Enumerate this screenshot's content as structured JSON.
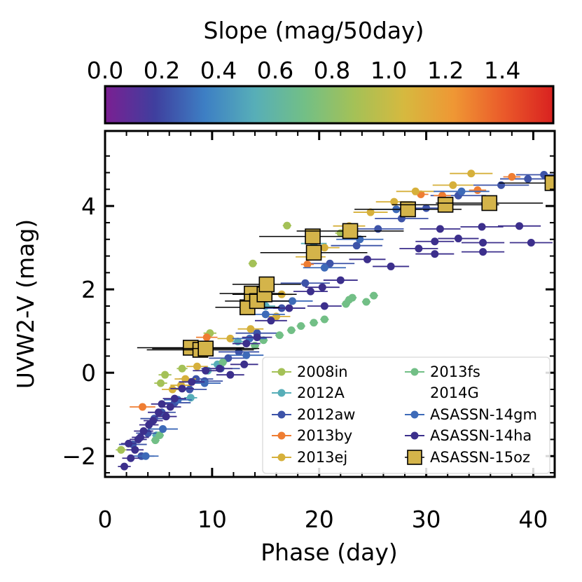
{
  "chart_data": {
    "type": "scatter",
    "xlabel": "Phase (day)",
    "ylabel": "UVW2-V (mag)",
    "xlim": [
      0,
      42
    ],
    "ylim": [
      -2.5,
      5.8
    ],
    "xticks": [
      0,
      10,
      20,
      30,
      40
    ],
    "xtick_labels": [
      "0",
      "10",
      "20",
      "30",
      "40"
    ],
    "yticks": [
      -2,
      0,
      2,
      4
    ],
    "ytick_labels": [
      "−2",
      "0",
      "2",
      "4"
    ],
    "colorbar": {
      "label": "Slope (mag/50day)",
      "range": [
        0.0,
        1.58
      ],
      "ticks": [
        0.0,
        0.2,
        0.4,
        0.6,
        0.8,
        1.0,
        1.2,
        1.4
      ],
      "tick_labels": [
        "0.0",
        "0.2",
        "0.4",
        "0.6",
        "0.8",
        "1.0",
        "1.2",
        "1.4"
      ],
      "colors": [
        "#7b1f92",
        "#3f3f9e",
        "#3d7fc4",
        "#57aeb8",
        "#72bf86",
        "#a4c157",
        "#d6b93f",
        "#ef9734",
        "#ea5a2a",
        "#d92120"
      ]
    },
    "legend_position": "lower-right",
    "series": [
      {
        "name": "2008in",
        "color": "#a4c157",
        "marker": "circle",
        "points": [
          [
            1.5,
            -1.85,
            0.5
          ],
          [
            5.6,
            -0.05,
            0.6
          ],
          [
            5.2,
            -0.25,
            0.6
          ],
          [
            9.8,
            0.95,
            0.6
          ],
          [
            13.8,
            2.62,
            0.4
          ],
          [
            17.0,
            3.53,
            0.4
          ],
          [
            22.0,
            3.35,
            0.5
          ],
          [
            7.2,
            0.1,
            0.5
          ]
        ]
      },
      {
        "name": "2012A",
        "color": "#57aeb8",
        "marker": "circle",
        "points": [
          [
            4.8,
            -1.5,
            0.4
          ],
          [
            8.0,
            -0.6,
            0.6
          ],
          [
            10.5,
            0.2,
            0.6
          ],
          [
            12.4,
            0.75,
            0.8
          ],
          [
            15.0,
            1.6,
            0.9
          ],
          [
            19.5,
            3.1,
            1.2
          ],
          [
            9.6,
            0.05,
            0.6
          ]
        ]
      },
      {
        "name": "2012aw",
        "color": "#3d53a8",
        "marker": "circle",
        "points": [
          [
            2.6,
            -1.72,
            1.3
          ],
          [
            3.4,
            -2.0,
            1.2
          ],
          [
            4.0,
            -1.45,
            1.1
          ],
          [
            4.6,
            -1.1,
            1.3
          ],
          [
            5.3,
            -0.95,
            1.3
          ],
          [
            6.5,
            -0.72,
            1.5
          ],
          [
            7.9,
            -0.4,
            1.6
          ],
          [
            9.3,
            -0.2,
            1.7
          ],
          [
            10.8,
            0.1,
            1.8
          ],
          [
            12.5,
            0.5,
            1.9
          ],
          [
            14.2,
            0.95,
            2.0
          ],
          [
            16.5,
            1.55,
            2.2
          ],
          [
            18.7,
            2.15,
            2.3
          ],
          [
            21.0,
            2.62,
            2.3
          ],
          [
            23.5,
            3.05,
            2.4
          ],
          [
            25.5,
            3.45,
            2.4
          ],
          [
            27.7,
            3.7,
            2.5
          ],
          [
            30.0,
            3.95,
            2.5
          ],
          [
            33.0,
            4.25,
            2.6
          ],
          [
            37.0,
            4.5,
            2.6
          ],
          [
            39.5,
            4.65,
            2.6
          ],
          [
            41.0,
            4.75,
            2.6
          ],
          [
            11.5,
            0.35,
            1.8
          ],
          [
            8.5,
            -0.15,
            1.6
          ]
        ]
      },
      {
        "name": "2013by",
        "color": "#ef7d32",
        "marker": "circle",
        "points": [
          [
            3.5,
            -0.82,
            1.2
          ],
          [
            9.5,
            0.85,
            1.0
          ],
          [
            18.9,
            2.6,
            0.6
          ],
          [
            29.5,
            4.28,
            0.7
          ],
          [
            31.5,
            4.25,
            0.8
          ],
          [
            34.8,
            4.38,
            0.8
          ],
          [
            38.0,
            4.7,
            0.8
          ]
        ]
      },
      {
        "name": "2013ej",
        "color": "#d6b03b",
        "marker": "circle",
        "points": [
          [
            6.3,
            -0.4,
            1.0
          ],
          [
            7.5,
            -0.15,
            1.0
          ],
          [
            8.6,
            0.15,
            1.0
          ],
          [
            11.7,
            0.82,
            1.2
          ],
          [
            13.6,
            1.05,
            1.2
          ],
          [
            16.0,
            1.35,
            1.3
          ],
          [
            16.5,
            1.88,
            1.0
          ],
          [
            19.2,
            2.78,
            1.4
          ],
          [
            20.5,
            3.0,
            1.4
          ],
          [
            22.8,
            3.52,
            1.5
          ],
          [
            24.8,
            3.85,
            1.6
          ],
          [
            27.0,
            4.1,
            1.7
          ],
          [
            29.0,
            4.35,
            1.8
          ],
          [
            32.5,
            4.5,
            1.9
          ],
          [
            34.2,
            4.78,
            2.0
          ],
          [
            7.1,
            -0.3,
            1.0
          ]
        ]
      },
      {
        "name": "2013fs",
        "color": "#72bf86",
        "marker": "circle",
        "points": [
          [
            11.0,
            0.25,
            0.4
          ],
          [
            14.0,
            0.65,
            0.4
          ],
          [
            14.8,
            0.78,
            0.4
          ],
          [
            16.3,
            0.9,
            0.4
          ],
          [
            17.4,
            1.02,
            0.4
          ],
          [
            18.3,
            1.12,
            0.4
          ],
          [
            19.5,
            1.2,
            0.4
          ],
          [
            20.5,
            1.28,
            0.4
          ],
          [
            22.5,
            1.65,
            0.4
          ],
          [
            22.8,
            1.75,
            0.4
          ],
          [
            23.1,
            1.8,
            0.4
          ],
          [
            24.4,
            1.7,
            0.4
          ],
          [
            25.1,
            1.85,
            0.4
          ],
          [
            4.7,
            -1.62,
            0.4
          ],
          [
            5.1,
            -1.5,
            0.4
          ]
        ]
      },
      {
        "name": "2014G",
        "color": "#ffffff",
        "marker": "none",
        "points": []
      },
      {
        "name": "ASASSN-14gm",
        "color": "#3d6ab8",
        "marker": "circle",
        "points": [
          [
            3.8,
            -2.0,
            1.2
          ],
          [
            5.4,
            -1.35,
            1.4
          ],
          [
            6.8,
            -0.65,
            1.3
          ],
          [
            9.3,
            -0.25,
            1.5
          ],
          [
            13.2,
            0.42,
            1.6
          ],
          [
            13.5,
            0.82,
            1.6
          ],
          [
            15.0,
            1.4,
            1.8
          ],
          [
            17.5,
            1.72,
            1.9
          ],
          [
            20.5,
            2.52,
            2.0
          ],
          [
            23.8,
            3.2,
            2.2
          ],
          [
            27.2,
            3.92,
            2.4
          ],
          [
            33.3,
            4.35,
            2.6
          ]
        ]
      },
      {
        "name": "ASASSN-14ha",
        "color": "#3c2f8c",
        "marker": "circle",
        "points": [
          [
            1.8,
            -2.25,
            0.6
          ],
          [
            2.4,
            -2.05,
            0.8
          ],
          [
            2.8,
            -1.85,
            0.8
          ],
          [
            3.1,
            -1.6,
            0.8
          ],
          [
            3.6,
            -1.4,
            0.9
          ],
          [
            4.1,
            -1.25,
            0.9
          ],
          [
            4.5,
            -1.15,
            0.9
          ],
          [
            5.0,
            -0.95,
            1.0
          ],
          [
            5.3,
            -0.75,
            1.0
          ],
          [
            5.7,
            -1.05,
            1.0
          ],
          [
            6.1,
            -0.82,
            1.0
          ],
          [
            6.5,
            -0.62,
            1.1
          ],
          [
            7.2,
            -0.38,
            1.1
          ],
          [
            8.1,
            -0.22,
            1.2
          ],
          [
            9.4,
            0.05,
            1.2
          ],
          [
            10.7,
            0.1,
            1.2
          ],
          [
            11.7,
            -0.05,
            1.3
          ],
          [
            13.0,
            0.2,
            1.3
          ],
          [
            13.2,
            0.7,
            1.3
          ],
          [
            14.2,
            0.85,
            1.4
          ],
          [
            15.5,
            1.25,
            1.5
          ],
          [
            17.2,
            1.55,
            1.5
          ],
          [
            19.2,
            1.95,
            1.6
          ],
          [
            20.5,
            1.6,
            1.6
          ],
          [
            20.3,
            2.05,
            1.6
          ],
          [
            22.0,
            2.22,
            1.6
          ],
          [
            24.5,
            2.72,
            1.7
          ],
          [
            26.7,
            2.55,
            1.7
          ],
          [
            29.3,
            2.98,
            1.8
          ],
          [
            30.8,
            3.15,
            1.8
          ],
          [
            30.8,
            2.85,
            1.8
          ],
          [
            33.0,
            3.22,
            1.9
          ],
          [
            31.3,
            3.45,
            1.9
          ],
          [
            35.3,
            3.12,
            2.0
          ],
          [
            35.3,
            2.9,
            2.0
          ],
          [
            35.2,
            3.5,
            2.0
          ],
          [
            38.7,
            3.52,
            2.0
          ],
          [
            39.8,
            3.12,
            2.0
          ],
          [
            3.3,
            -1.55,
            0.8
          ],
          [
            2.2,
            -1.7,
            0.7
          ]
        ]
      },
      {
        "name": "ASASSN-15oz",
        "color": "#d4b44a",
        "marker": "square",
        "points": [
          [
            8.0,
            0.6,
            5.0
          ],
          [
            8.9,
            0.55,
            5.0
          ],
          [
            9.4,
            0.58,
            5.0
          ],
          [
            13.3,
            1.57,
            3.0
          ],
          [
            13.7,
            1.9,
            3.0
          ],
          [
            14.2,
            1.72,
            3.0
          ],
          [
            14.9,
            1.88,
            3.0
          ],
          [
            15.1,
            2.12,
            3.2
          ],
          [
            19.4,
            3.27,
            5.0
          ],
          [
            19.5,
            2.88,
            5.0
          ],
          [
            22.9,
            3.4,
            5.0
          ],
          [
            28.3,
            3.92,
            5.0
          ],
          [
            31.8,
            4.03,
            5.0
          ],
          [
            35.9,
            4.07,
            5.0
          ],
          [
            41.8,
            4.55,
            5.0
          ]
        ]
      }
    ]
  }
}
